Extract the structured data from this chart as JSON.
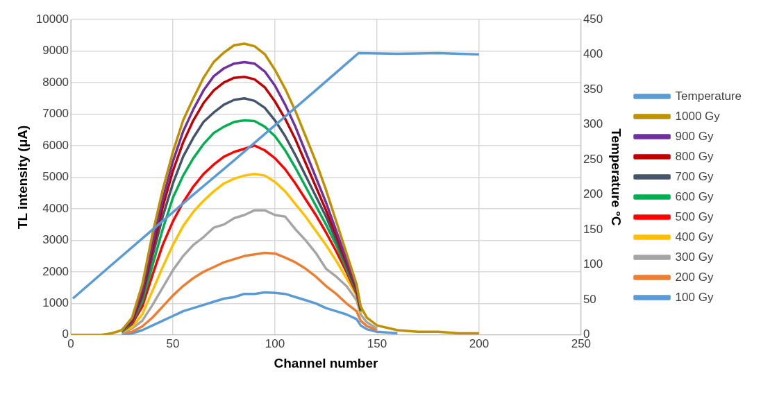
{
  "chart_data": {
    "type": "line",
    "xlabel": "Channel number",
    "ylabel": "TL intensity (μA)",
    "y2label": "Temperature °C",
    "x": [
      0,
      10,
      15,
      20,
      25,
      30,
      35,
      40,
      45,
      50,
      55,
      60,
      65,
      70,
      75,
      80,
      85,
      90,
      95,
      100,
      105,
      110,
      115,
      120,
      125,
      130,
      135,
      140,
      142,
      145,
      150,
      160,
      170,
      180,
      190,
      200
    ],
    "series": [
      {
        "name": "100 Gy",
        "color": "#5b9bd5",
        "values": [
          null,
          null,
          null,
          null,
          0,
          50,
          150,
          300,
          450,
          600,
          750,
          850,
          950,
          1050,
          1150,
          1200,
          1300,
          1300,
          1350,
          1330,
          1300,
          1200,
          1100,
          1000,
          850,
          750,
          650,
          500,
          300,
          180,
          100,
          50,
          null,
          null,
          null,
          null
        ]
      },
      {
        "name": "200 Gy",
        "color": "#ed7d31",
        "values": [
          null,
          null,
          null,
          null,
          50,
          100,
          270,
          550,
          900,
          1250,
          1550,
          1800,
          2000,
          2150,
          2300,
          2400,
          2500,
          2550,
          2600,
          2580,
          2450,
          2300,
          2100,
          1850,
          1550,
          1300,
          1000,
          750,
          450,
          280,
          150,
          null,
          null,
          null,
          null,
          null
        ]
      },
      {
        "name": "300 Gy",
        "color": "#a5a5a5",
        "values": [
          null,
          null,
          null,
          null,
          50,
          200,
          450,
          950,
          1500,
          2050,
          2500,
          2850,
          3100,
          3400,
          3500,
          3700,
          3800,
          3950,
          3950,
          3800,
          3750,
          3350,
          3000,
          2600,
          2100,
          1850,
          1550,
          1100,
          650,
          400,
          200,
          null,
          null,
          null,
          null,
          null
        ]
      },
      {
        "name": "400 Gy",
        "color": "#ffc000",
        "values": [
          null,
          null,
          null,
          null,
          100,
          250,
          650,
          1400,
          2150,
          2850,
          3450,
          3900,
          4250,
          4550,
          4800,
          4950,
          5050,
          5100,
          5050,
          4850,
          4550,
          4150,
          3750,
          3300,
          2850,
          2350,
          1800,
          1250,
          700,
          null,
          null,
          null,
          null,
          null,
          null,
          null
        ]
      },
      {
        "name": "500 Gy",
        "color": "#ff0000",
        "values": [
          null,
          null,
          null,
          null,
          100,
          350,
          900,
          1900,
          2850,
          3600,
          4200,
          4700,
          5100,
          5400,
          5650,
          5800,
          5900,
          6000,
          5850,
          5600,
          5250,
          4800,
          4300,
          3800,
          3250,
          2650,
          2000,
          1300,
          750,
          null,
          null,
          null,
          null,
          null,
          null,
          null
        ]
      },
      {
        "name": "600 Gy",
        "color": "#00b050",
        "values": [
          null,
          null,
          null,
          null,
          100,
          400,
          1050,
          2200,
          3350,
          4350,
          5050,
          5600,
          6050,
          6400,
          6600,
          6750,
          6800,
          6780,
          6600,
          6300,
          5850,
          5300,
          4700,
          4100,
          3500,
          2850,
          2100,
          1350,
          750,
          null,
          null,
          null,
          null,
          null,
          null,
          null
        ]
      },
      {
        "name": "700 Gy",
        "color": "#44546a",
        "values": [
          null,
          null,
          null,
          null,
          150,
          400,
          1200,
          2500,
          3750,
          4800,
          5650,
          6250,
          6750,
          7050,
          7300,
          7450,
          7500,
          7420,
          7200,
          6800,
          6300,
          5700,
          5050,
          4400,
          3750,
          3000,
          2200,
          1400,
          800,
          null,
          null,
          null,
          null,
          null,
          null,
          null
        ]
      },
      {
        "name": "800 Gy",
        "color": "#c00000",
        "values": [
          null,
          null,
          null,
          null,
          150,
          450,
          1300,
          2700,
          4050,
          5200,
          6100,
          6800,
          7350,
          7750,
          8000,
          8150,
          8180,
          8100,
          7850,
          7400,
          6850,
          6200,
          5450,
          4700,
          3950,
          3150,
          2300,
          1450,
          800,
          null,
          null,
          null,
          null,
          null,
          null,
          null
        ]
      },
      {
        "name": "900 Gy",
        "color": "#7030a0",
        "values": [
          null,
          null,
          null,
          null,
          150,
          500,
          1400,
          2900,
          4300,
          5500,
          6450,
          7150,
          7750,
          8200,
          8450,
          8600,
          8650,
          8600,
          8350,
          7900,
          7300,
          6600,
          5800,
          5000,
          4200,
          3300,
          2400,
          1500,
          850,
          null,
          null,
          null,
          null,
          null,
          null,
          null
        ]
      },
      {
        "name": "1000 Gy",
        "color": "#bf9000",
        "values": [
          0,
          0,
          0,
          50,
          150,
          550,
          1600,
          3200,
          4600,
          5800,
          6800,
          7500,
          8150,
          8650,
          8950,
          9180,
          9230,
          9150,
          8900,
          8400,
          7800,
          7100,
          6300,
          5500,
          4600,
          3600,
          2600,
          1600,
          900,
          550,
          300,
          150,
          100,
          100,
          50,
          50
        ]
      },
      {
        "name": "Temperature",
        "color": "#5b9bd5",
        "axis": "y2",
        "x": [
          1,
          20,
          40,
          60,
          80,
          100,
          120,
          141,
          160,
          180,
          200
        ],
        "values": [
          52,
          100,
          150,
          200,
          249,
          299,
          349,
          402,
          401,
          402,
          400
        ]
      }
    ],
    "xlim": [
      0,
      250
    ],
    "xticks": [
      0,
      50,
      100,
      150,
      200,
      250
    ],
    "ylim": [
      0,
      10000
    ],
    "yticks": [
      0,
      1000,
      2000,
      3000,
      4000,
      5000,
      6000,
      7000,
      8000,
      9000,
      10000
    ],
    "y2lim": [
      0,
      450
    ],
    "y2ticks": [
      0,
      50,
      100,
      150,
      200,
      250,
      300,
      350,
      400,
      450
    ],
    "grid": true,
    "legend": "right",
    "marker": "none"
  }
}
